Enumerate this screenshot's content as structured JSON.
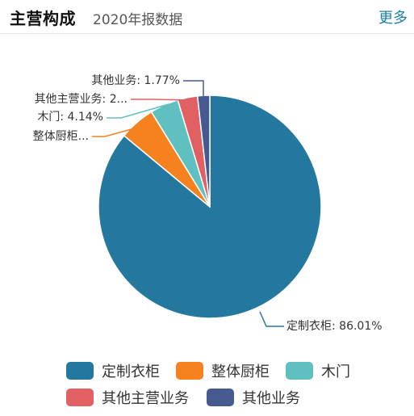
{
  "header": {
    "title": "主营构成",
    "subtitle": "2020年报数据",
    "more_label": "更多"
  },
  "chart_data": {
    "type": "pie",
    "title": "主营构成",
    "subtitle": "2020年报数据",
    "start": "top",
    "direction": "clockwise",
    "legend_position": "bottom",
    "slices": [
      {
        "name": "定制衣柜",
        "value": 86.01,
        "color": "#24789f",
        "label": "定制衣柜: 86.01%"
      },
      {
        "name": "整体厨柜",
        "value": 5.2,
        "color": "#f5821f",
        "label": "整体厨柜..."
      },
      {
        "name": "木门",
        "value": 4.14,
        "color": "#60c0c0",
        "label": "木门: 4.14%"
      },
      {
        "name": "其他主营业务",
        "value": 2.88,
        "color": "#e06064",
        "label": "其他主营业务: 2..."
      },
      {
        "name": "其他业务",
        "value": 1.77,
        "color": "#465a8f",
        "label": "其他业务: 1.77%"
      }
    ]
  }
}
